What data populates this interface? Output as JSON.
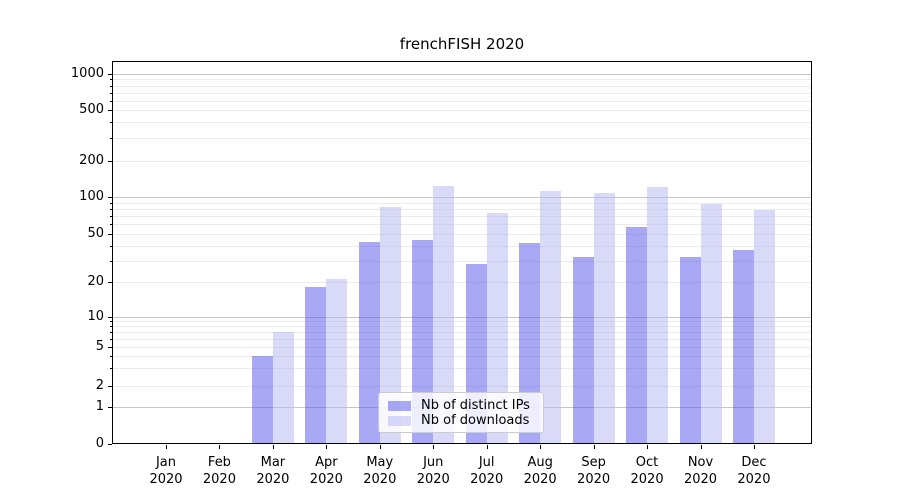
{
  "chart_data": {
    "type": "bar",
    "title": "frenchFISH 2020",
    "categories": [
      "Jan 2020",
      "Feb 2020",
      "Mar 2020",
      "Apr 2020",
      "May 2020",
      "Jun 2020",
      "Jul 2020",
      "Aug 2020",
      "Sep 2020",
      "Oct 2020",
      "Nov 2020",
      "Dec 2020"
    ],
    "series": [
      {
        "name": "Nb of distinct IPs",
        "color": "rgba(82,82,235,0.5)",
        "values": [
          0,
          0,
          4,
          18,
          43,
          45,
          28,
          42,
          32,
          57,
          32,
          37
        ]
      },
      {
        "name": "Nb of downloads",
        "color": "rgba(179,179,241,0.5)",
        "values": [
          0,
          0,
          7,
          21,
          83,
          124,
          74,
          113,
          108,
          122,
          88,
          79
        ]
      }
    ],
    "xlabel": "",
    "ylabel": "",
    "yscale": "symlog",
    "yticks": [
      0,
      1,
      2,
      5,
      10,
      20,
      50,
      100,
      200,
      500,
      1000
    ],
    "ylim": [
      0,
      1260
    ],
    "grid": true,
    "grid_major_color": "#c6c6c6",
    "grid_minor_color": "#ebebeb",
    "legend_position": "lower center"
  }
}
